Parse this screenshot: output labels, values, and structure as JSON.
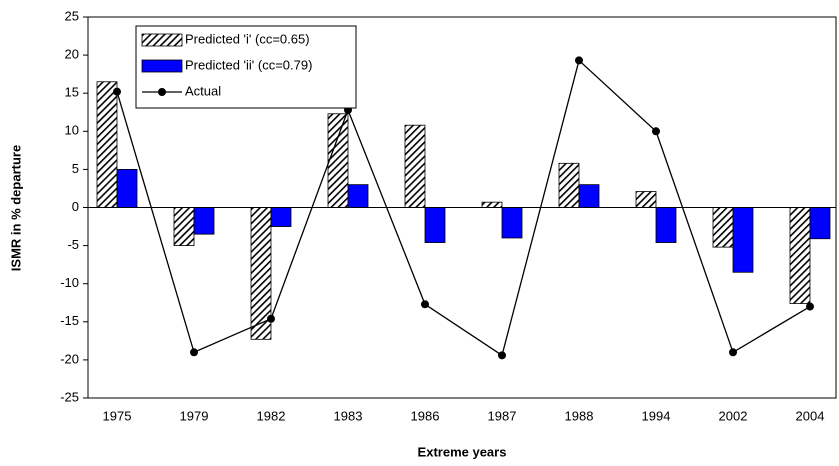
{
  "chart_data": {
    "type": "bar",
    "x_label": "Extreme years",
    "y_label": "ISMR in % departure",
    "categories": [
      "1975",
      "1979",
      "1982",
      "1983",
      "1986",
      "1987",
      "1988",
      "1994",
      "2002",
      "2004"
    ],
    "series": [
      {
        "name": "Predicted 'i' (cc=0.65)",
        "type": "bar",
        "color": "#000000",
        "pattern": "hatch",
        "values": [
          16.5,
          -5,
          -17.3,
          12.3,
          10.8,
          0.7,
          5.8,
          2.1,
          -5.2,
          -12.6
        ]
      },
      {
        "name": "Predicted 'ii' (cc=0.79)",
        "type": "bar",
        "color": "#0000ff",
        "values": [
          5,
          -3.5,
          -2.5,
          3,
          -4.6,
          -4,
          3,
          -4.6,
          -8.5,
          -4.1
        ]
      },
      {
        "name": "Actual",
        "type": "line",
        "color": "#000000",
        "values": [
          15.2,
          -19,
          -14.6,
          12.8,
          -12.7,
          -19.4,
          19.3,
          10,
          -19,
          -13
        ]
      }
    ],
    "ylim": [
      -25,
      25
    ],
    "yticks": [
      -25,
      -20,
      -15,
      -10,
      -5,
      0,
      5,
      10,
      15,
      20,
      25
    ],
    "grid": false,
    "legend": "top-left"
  }
}
